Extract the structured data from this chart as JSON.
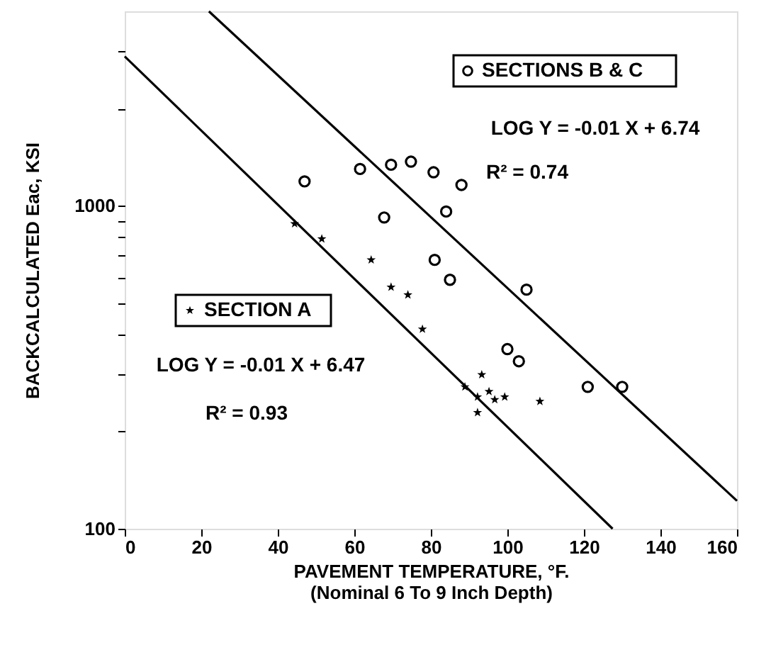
{
  "chart_data": {
    "type": "scatter",
    "xlabel": "PAVEMENT TEMPERATURE, °F.\n(Nominal 6 To 9 Inch Depth)",
    "ylabel": "BACKCALCULATED Eac, KSI",
    "log": "y",
    "grid": false,
    "legend": "top right",
    "xlim": [
      0,
      160
    ],
    "xticks": [
      0,
      20,
      40,
      60,
      80,
      100,
      120,
      140,
      160
    ],
    "ylim": [
      100,
      4000
    ],
    "yticks": [
      100,
      {
        "value": 200,
        "label": null
      },
      {
        "value": 300,
        "label": null
      },
      {
        "value": 400,
        "label": null
      },
      {
        "value": 500,
        "label": null
      },
      {
        "value": 600,
        "label": null
      },
      {
        "value": 700,
        "label": null
      },
      {
        "value": 800,
        "label": null
      },
      {
        "value": 900,
        "label": null
      },
      1000,
      {
        "value": 2000,
        "label": null
      },
      {
        "value": 3000,
        "label": null
      }
    ],
    "annotations": [
      "LOG Y = -0.01 X + 6.74",
      "R² = 0.74",
      "LOG Y = -0.01 X + 6.47",
      "R² = 0.93"
    ],
    "series": [
      {
        "name": "SECTIONS B & C",
        "marker": "circle",
        "color": "#000000",
        "x": [
          47,
          61.5,
          69.6,
          74.8,
          80.7,
          88,
          67.8,
          84,
          81,
          85,
          105,
          100,
          103,
          121,
          130
        ],
        "values": [
          1190,
          1300,
          1340,
          1370,
          1270,
          1160,
          920,
          960,
          680,
          590,
          550,
          360,
          330,
          275,
          275
        ]
      },
      {
        "name": "SECTION A",
        "marker": "star",
        "color": "#000000",
        "x": [
          44.4,
          51.5,
          64.4,
          69.6,
          74,
          77.8,
          93.3,
          88.9,
          92.2,
          95.2,
          96.7,
          99.3,
          92.2,
          108.5
        ],
        "values": [
          880,
          790,
          680,
          560,
          530,
          415,
          300,
          275,
          256,
          266,
          251,
          256,
          229,
          248
        ]
      },
      {
        "type": "line",
        "color": "#000000",
        "x": [
          22,
          160
        ],
        "values": [
          4000,
          122
        ]
      },
      {
        "type": "line",
        "color": "#000000",
        "x": [
          0,
          127.5
        ],
        "values": [
          2900,
          100
        ]
      }
    ]
  }
}
